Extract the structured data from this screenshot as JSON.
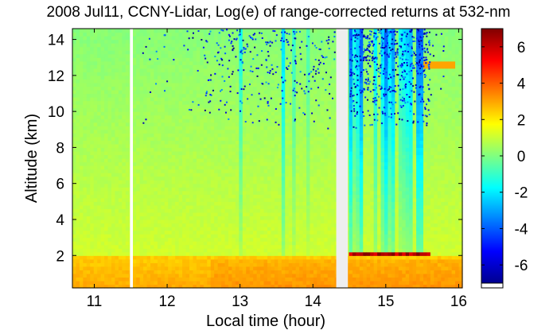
{
  "chart_data": {
    "type": "heatmap",
    "title": "2008 Jul11, CCNY-Lidar, Log(e) of range-corrected returns at 532-nm",
    "xlabel": "Local time (hour)",
    "ylabel": "Altitude (km)",
    "xlim": [
      10.7,
      16.05
    ],
    "ylim": [
      0.2,
      14.6
    ],
    "xticks": [
      "11",
      "12",
      "13",
      "14",
      "15",
      "16"
    ],
    "yticks": [
      "2",
      "4",
      "6",
      "8",
      "10",
      "12",
      "14"
    ],
    "colorbar": {
      "range": [
        -7,
        7
      ],
      "ticks": [
        "6",
        "4",
        "2",
        "0",
        "-2",
        "-4",
        "-6"
      ],
      "colormap": "jet"
    },
    "data_gaps_hours": [
      [
        11.49,
        11.53
      ],
      [
        14.32,
        14.48
      ]
    ],
    "features": {
      "boundary_layer_top_km": 2.1,
      "background_value": 0.5,
      "boundary_layer_value": 3.0,
      "cloud_base_value": 7.0,
      "noisy_signal_periods_hours": [
        [
          13.5,
          13.6
        ],
        [
          14.5,
          15.6
        ]
      ],
      "aerosol_layer": {
        "x": [
          15.5,
          15.95
        ],
        "y": [
          12.4,
          12.8
        ],
        "value": 3.0
      }
    }
  }
}
